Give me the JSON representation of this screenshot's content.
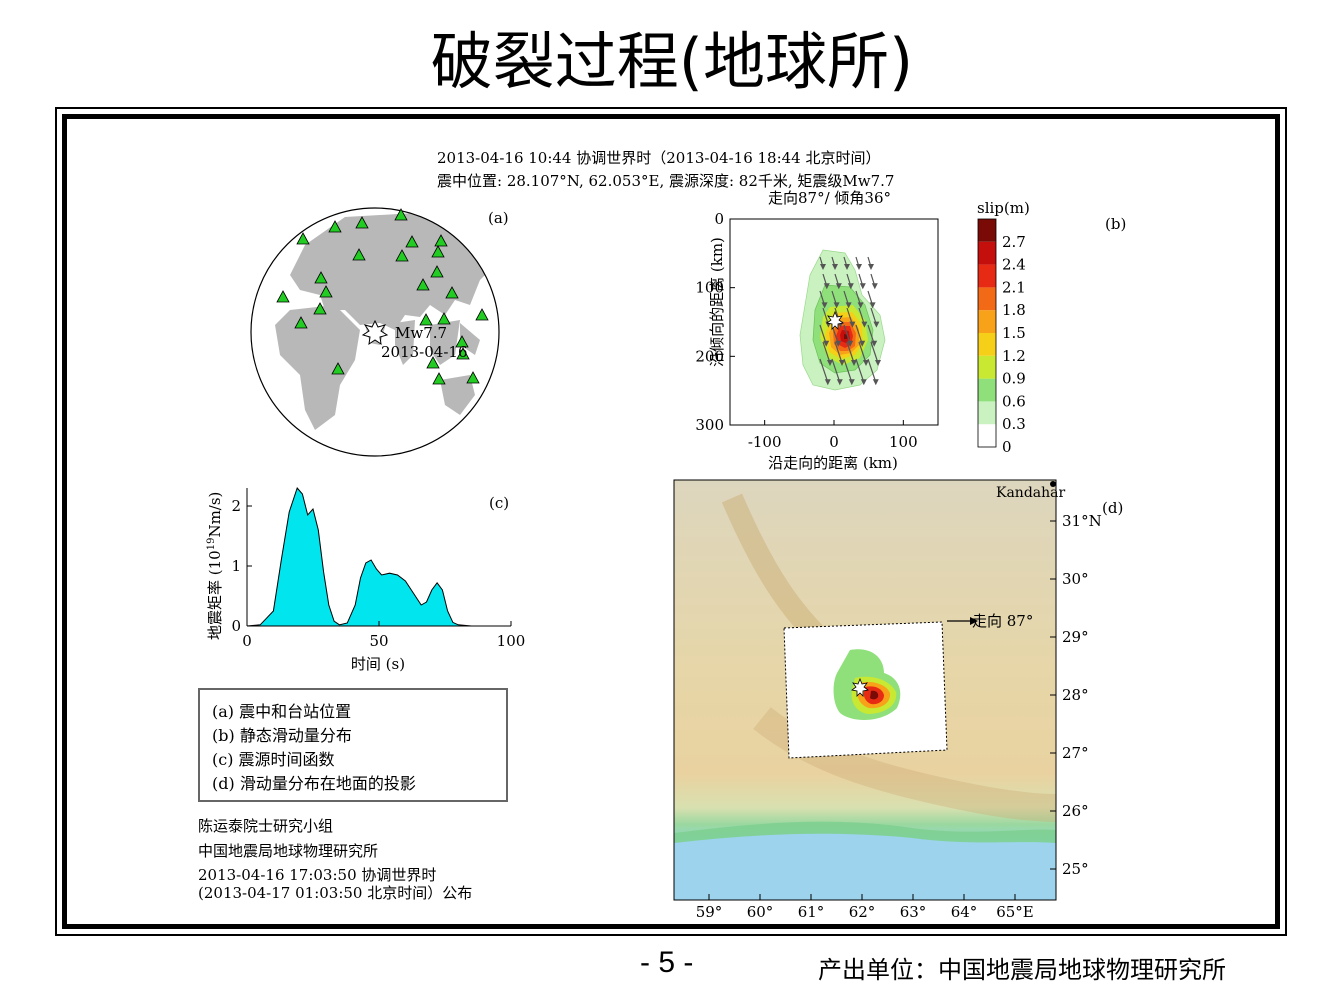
{
  "slide": {
    "title": "破裂过程(地球所)",
    "page_number": "- 5 -",
    "producer": "产出单位：中国地震局地球物理研究所"
  },
  "header": {
    "line1": "2013-04-16 10:44 协调世界时（2013-04-16 18:44 北京时间）",
    "line2": "震中位置: 28.107°N, 62.053°E, 震源深度: 82千米, 矩震级Mw7.7",
    "line3": "走向87°/ 倾角36°"
  },
  "panel_a": {
    "tag": "(a)",
    "event_magnitude": "Mw7.7",
    "event_date": "2013-04-16",
    "station_count": 26
  },
  "colors": {
    "station": "#22cc22",
    "land": "#b8b8b8",
    "stf_fill": "#00e5ee",
    "slip_scale": [
      "#ffffff",
      "#c9f2c0",
      "#8fe07a",
      "#c8e832",
      "#f6d018",
      "#f8a21a",
      "#f36a16",
      "#e62a14",
      "#c40f0c",
      "#7a0a05"
    ]
  },
  "chart_data": [
    {
      "type": "heatmap",
      "tag": "(b)",
      "xlabel": "沿走向的距离 (km)",
      "ylabel": "沿倾向的距离 (km)",
      "xlim": [
        -150,
        150
      ],
      "ylim": [
        300,
        0
      ],
      "xticks": [
        "-100",
        "0",
        "100"
      ],
      "yticks": [
        "0",
        "100",
        "200",
        "300"
      ],
      "colorbar_title": "slip(m)",
      "colorbar_ticks": [
        "0",
        "0.3",
        "0.6",
        "0.9",
        "1.2",
        "1.5",
        "1.8",
        "2.1",
        "2.4",
        "2.7"
      ],
      "hypocenter": [
        0,
        150
      ],
      "peak_slip_location": [
        20,
        170
      ],
      "max_slip": 2.7
    },
    {
      "type": "area",
      "tag": "(c)",
      "xlabel": "时间 (s)",
      "ylabel_main": "地震矩率 (10",
      "ylabel_sup": "19",
      "ylabel_tail": "Nm/s)",
      "xlim": [
        0,
        100
      ],
      "ylim": [
        0,
        2.3
      ],
      "xticks": [
        "0",
        "50",
        "100"
      ],
      "yticks": [
        "0",
        "1",
        "2"
      ],
      "x": [
        0,
        5,
        10,
        13,
        16,
        19,
        21,
        23,
        25,
        27,
        29,
        31,
        33,
        35,
        38,
        41,
        43,
        45,
        47,
        49,
        51,
        54,
        57,
        60,
        63,
        66,
        68,
        70,
        72,
        74,
        76,
        78,
        80,
        85,
        90,
        100
      ],
      "y": [
        0,
        0.02,
        0.25,
        1.1,
        1.9,
        2.3,
        2.2,
        1.85,
        1.95,
        1.6,
        0.9,
        0.35,
        0.08,
        0.02,
        0.05,
        0.35,
        0.8,
        1.05,
        1.1,
        0.95,
        0.85,
        0.88,
        0.85,
        0.75,
        0.55,
        0.35,
        0.4,
        0.6,
        0.72,
        0.6,
        0.25,
        0.06,
        0.02,
        0,
        0,
        0
      ]
    },
    {
      "type": "heatmap",
      "tag": "(d)",
      "city": "Kandahar",
      "strike_label": "走向 87°",
      "lon_ticks": [
        "59°",
        "60°",
        "61°",
        "62°",
        "63°",
        "64°",
        "65°E"
      ],
      "lat_ticks": [
        "31°N",
        "30°",
        "29°",
        "28°",
        "27°",
        "26°",
        "25°"
      ],
      "epicenter": [
        62.053,
        28.107
      ]
    }
  ],
  "legend": {
    "items": [
      "(a) 震中和台站位置",
      "(b) 静态滑动量分布",
      "(c) 震源时间函数",
      "(d) 滑动量分布在地面的投影"
    ]
  },
  "credits": {
    "line1": "陈运泰院士研究小组",
    "line2": "中国地震局地球物理研究所",
    "line3": "2013-04-16 17:03:50 协调世界时",
    "line4": "(2013-04-17 01:03:50 北京时间）公布"
  }
}
